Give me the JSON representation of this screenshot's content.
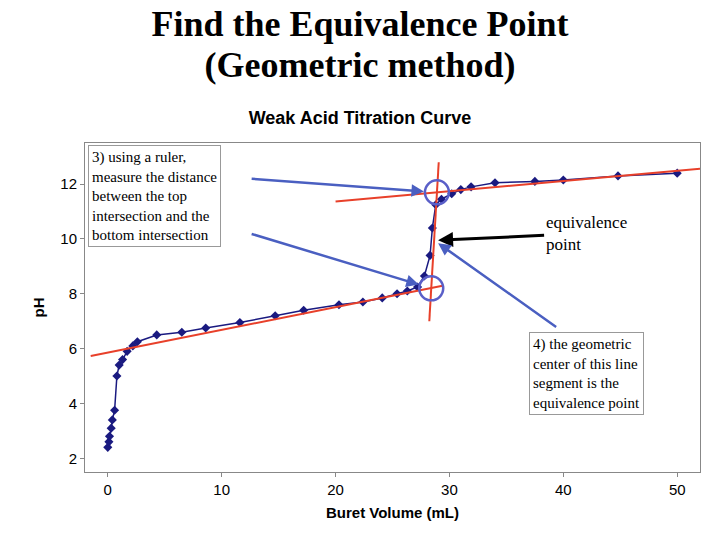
{
  "slide_title": [
    "Find the Equivalence Point",
    "(Geometric method)"
  ],
  "chart_data": {
    "type": "scatter",
    "title": "Weak Acid Titration Curve",
    "x_label": "Buret Volume (mL)",
    "y_label": "pH",
    "xlim": [
      -2,
      52
    ],
    "xticks": [
      0,
      10,
      20,
      30,
      40,
      50
    ],
    "ylim": [
      1.5,
      13.5
    ],
    "yticks": [
      2,
      4,
      6,
      8,
      10,
      12
    ],
    "grid": false,
    "series": [
      {
        "type": "scatter",
        "color": "#1a1a80",
        "marker": "diamond",
        "line_style": "solid",
        "x": [
          0,
          0.1,
          0.15,
          0.3,
          0.4,
          0.6,
          0.8,
          1.0,
          1.3,
          1.7,
          2.2,
          2.6,
          4.3,
          6.5,
          8.6,
          11.6,
          14.7,
          17.2,
          20.3,
          22.4,
          24.1,
          25.4,
          26.3,
          27.2,
          27.8,
          28.3,
          28.5,
          28.8,
          29.3,
          30.2,
          31,
          31.9,
          34,
          37.5,
          40,
          44.8,
          50
        ],
        "values": [
          2.4,
          2.6,
          2.8,
          3.1,
          3.4,
          3.75,
          5.0,
          5.4,
          5.6,
          5.9,
          6.1,
          6.25,
          6.5,
          6.6,
          6.75,
          6.95,
          7.2,
          7.4,
          7.6,
          7.7,
          7.85,
          8.0,
          8.1,
          8.25,
          8.65,
          9.4,
          10.4,
          11.25,
          11.45,
          11.65,
          11.8,
          11.9,
          12.05,
          12.1,
          12.15,
          12.3,
          12.4
        ]
      },
      {
        "type": "line",
        "color": "#e8402a",
        "line_style": "solid",
        "x": [
          -1.5,
          29.5
        ],
        "values": [
          5.73,
          8.3
        ]
      },
      {
        "type": "line",
        "color": "#e8402a",
        "line_style": "solid",
        "x": [
          20,
          52
        ],
        "values": [
          11.37,
          12.56
        ]
      },
      {
        "type": "line",
        "color": "#e8402a",
        "line_style": "solid",
        "x": [
          28.23,
          29.06
        ],
        "values": [
          7.0,
          12.8
        ]
      },
      {
        "type": "scatter",
        "color": "#5a5fc8",
        "marker": "circle-open",
        "x": [
          28.4,
          28.9
        ],
        "values": [
          8.2,
          11.7
        ]
      }
    ],
    "equivalence_point": {
      "x": 28.65,
      "y": 9.95
    },
    "annotations": [
      {
        "lines": [
          "3) using a ruler,",
          "measure the distance",
          "between the top",
          "intersection and the",
          "bottom intersection"
        ]
      },
      {
        "lines": [
          "equivalence",
          "point"
        ]
      },
      {
        "lines": [
          "4) the geometric",
          "center of this line",
          "segment is the",
          "equivalence point"
        ]
      }
    ]
  }
}
